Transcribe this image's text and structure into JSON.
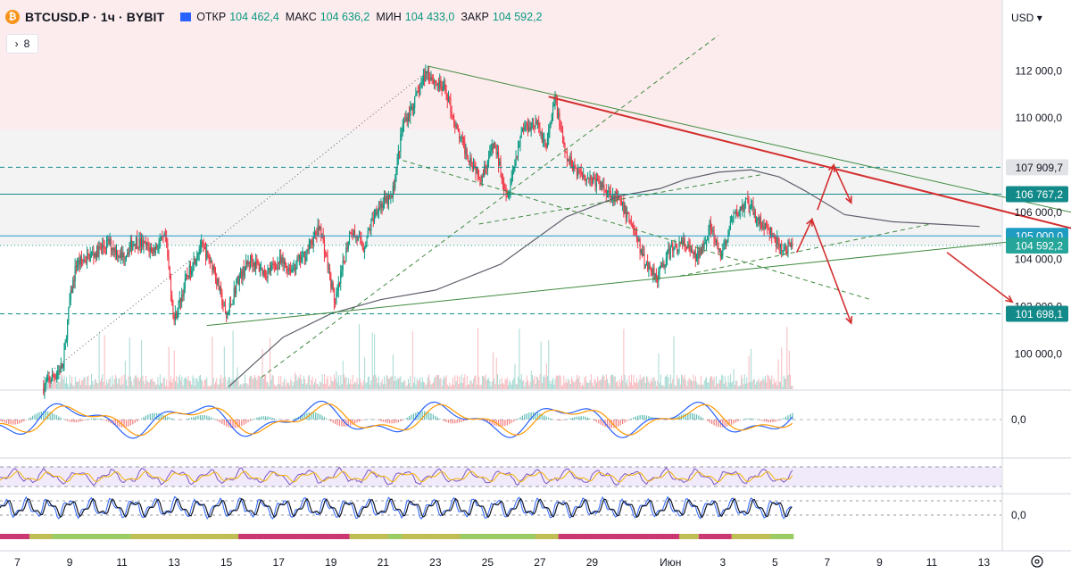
{
  "header": {
    "coin_glyph": "₿",
    "symbol": "BTCUSD.P · 1ч · BYBIT",
    "ohlc": [
      {
        "label": "ОТКР",
        "value": "104 462,4"
      },
      {
        "label": "МАКС",
        "value": "104 636,2"
      },
      {
        "label": "МИН",
        "value": "104 433,0"
      },
      {
        "label": "ЗАКР",
        "value": "104 592,2"
      }
    ],
    "indicator_count": "8"
  },
  "price_axis": {
    "currency": "USD",
    "ticks": [
      {
        "label": "112 000,0",
        "value": 112000
      },
      {
        "label": "110 000,0",
        "value": 110000
      },
      {
        "label": "106 000,0",
        "value": 106000
      },
      {
        "label": "104 000,0",
        "value": 104000
      },
      {
        "label": "102 000,0",
        "value": 102000
      },
      {
        "label": "100 000,0",
        "value": 100000
      }
    ],
    "badges": [
      {
        "label": "107 909,7",
        "value": 107909.7,
        "color": "#e1e3e6",
        "text": "#131722"
      },
      {
        "label": "106 767,2",
        "value": 106767.2,
        "color": "#138a8a",
        "text": "#ffffff"
      },
      {
        "label": "105 000,0",
        "value": 105000.0,
        "color": "#1e9cc1",
        "text": "#ffffff"
      },
      {
        "label": "104 592,2",
        "value": 104592.2,
        "color": "#26a69a",
        "text": "#ffffff"
      },
      {
        "label": "101 698,1",
        "value": 101698.1,
        "color": "#138a8a",
        "text": "#ffffff"
      }
    ],
    "macd_zero": "0,0",
    "stoch_zero": "0,0"
  },
  "time_axis": {
    "labels": [
      {
        "label": "7",
        "bar": -24
      },
      {
        "label": "9",
        "bar": 24
      },
      {
        "label": "11",
        "bar": 72
      },
      {
        "label": "13",
        "bar": 120
      },
      {
        "label": "15",
        "bar": 168
      },
      {
        "label": "17",
        "bar": 216
      },
      {
        "label": "19",
        "bar": 264
      },
      {
        "label": "21",
        "bar": 312
      },
      {
        "label": "23",
        "bar": 360
      },
      {
        "label": "25",
        "bar": 408
      },
      {
        "label": "27",
        "bar": 456
      },
      {
        "label": "29",
        "bar": 504
      },
      {
        "label": "Июн",
        "bar": 576
      },
      {
        "label": "3",
        "bar": 624
      },
      {
        "label": "5",
        "bar": 672
      },
      {
        "label": "7",
        "bar": 720
      },
      {
        "label": "9",
        "bar": 768
      },
      {
        "label": "11",
        "bar": 816
      },
      {
        "label": "13",
        "bar": 864
      }
    ]
  },
  "chart_data": {
    "type": "candlestick",
    "symbol": "BTCUSD.P",
    "interval": "1h",
    "exchange": "BYBIT",
    "currency": "USD",
    "ylim": [
      98500,
      115000
    ],
    "xlim_bars": [
      -40,
      880
    ],
    "last_close": 104592.2,
    "close_path": [
      {
        "bar": 0,
        "price": 98600
      },
      {
        "bar": 18,
        "price": 99500
      },
      {
        "bar": 24,
        "price": 102200
      },
      {
        "bar": 30,
        "price": 103800
      },
      {
        "bar": 48,
        "price": 104300
      },
      {
        "bar": 60,
        "price": 104700
      },
      {
        "bar": 72,
        "price": 104100
      },
      {
        "bar": 84,
        "price": 104800
      },
      {
        "bar": 100,
        "price": 104400
      },
      {
        "bar": 112,
        "price": 104900
      },
      {
        "bar": 120,
        "price": 101400
      },
      {
        "bar": 132,
        "price": 103300
      },
      {
        "bar": 144,
        "price": 104600
      },
      {
        "bar": 156,
        "price": 103700
      },
      {
        "bar": 168,
        "price": 101500
      },
      {
        "bar": 178,
        "price": 103100
      },
      {
        "bar": 190,
        "price": 104000
      },
      {
        "bar": 204,
        "price": 103400
      },
      {
        "bar": 216,
        "price": 103900
      },
      {
        "bar": 228,
        "price": 103600
      },
      {
        "bar": 240,
        "price": 104200
      },
      {
        "bar": 254,
        "price": 105400
      },
      {
        "bar": 268,
        "price": 102100
      },
      {
        "bar": 282,
        "price": 105300
      },
      {
        "bar": 294,
        "price": 104500
      },
      {
        "bar": 306,
        "price": 106200
      },
      {
        "bar": 320,
        "price": 106600
      },
      {
        "bar": 330,
        "price": 109700
      },
      {
        "bar": 342,
        "price": 110800
      },
      {
        "bar": 352,
        "price": 112000
      },
      {
        "bar": 360,
        "price": 111500
      },
      {
        "bar": 370,
        "price": 111100
      },
      {
        "bar": 380,
        "price": 109400
      },
      {
        "bar": 390,
        "price": 108400
      },
      {
        "bar": 402,
        "price": 107500
      },
      {
        "bar": 414,
        "price": 108900
      },
      {
        "bar": 426,
        "price": 106700
      },
      {
        "bar": 440,
        "price": 109600
      },
      {
        "bar": 452,
        "price": 109800
      },
      {
        "bar": 462,
        "price": 108800
      },
      {
        "bar": 470,
        "price": 110800
      },
      {
        "bar": 480,
        "price": 108300
      },
      {
        "bar": 492,
        "price": 107700
      },
      {
        "bar": 504,
        "price": 107400
      },
      {
        "bar": 516,
        "price": 107000
      },
      {
        "bar": 528,
        "price": 106500
      },
      {
        "bar": 540,
        "price": 105600
      },
      {
        "bar": 552,
        "price": 103900
      },
      {
        "bar": 564,
        "price": 103300
      },
      {
        "bar": 576,
        "price": 104400
      },
      {
        "bar": 588,
        "price": 104700
      },
      {
        "bar": 600,
        "price": 104000
      },
      {
        "bar": 612,
        "price": 105400
      },
      {
        "bar": 622,
        "price": 104100
      },
      {
        "bar": 634,
        "price": 105800
      },
      {
        "bar": 646,
        "price": 106400
      },
      {
        "bar": 658,
        "price": 105600
      },
      {
        "bar": 668,
        "price": 105100
      },
      {
        "bar": 678,
        "price": 104400
      },
      {
        "bar": 688,
        "price": 104600
      }
    ],
    "moving_average_color": "#5d606b",
    "ma_path": [
      {
        "bar": 170,
        "price": 98600
      },
      {
        "bar": 220,
        "price": 100700
      },
      {
        "bar": 264,
        "price": 101700
      },
      {
        "bar": 310,
        "price": 102300
      },
      {
        "bar": 360,
        "price": 102700
      },
      {
        "bar": 420,
        "price": 103800
      },
      {
        "bar": 480,
        "price": 105800
      },
      {
        "bar": 530,
        "price": 106700
      },
      {
        "bar": 566,
        "price": 107000
      },
      {
        "bar": 590,
        "price": 107400
      },
      {
        "bar": 620,
        "price": 107700
      },
      {
        "bar": 650,
        "price": 107800
      },
      {
        "bar": 676,
        "price": 107500
      },
      {
        "bar": 700,
        "price": 106900
      },
      {
        "bar": 736,
        "price": 105900
      },
      {
        "bar": 780,
        "price": 105600
      },
      {
        "bar": 820,
        "price": 105500
      },
      {
        "bar": 860,
        "price": 105400
      }
    ],
    "horizontal_levels": [
      {
        "price": 107909.7,
        "style": "dashed",
        "color": "#138a8a"
      },
      {
        "price": 106767.2,
        "style": "solid",
        "color": "#138a8a"
      },
      {
        "price": 105000.0,
        "style": "solid",
        "color": "#1e9cc1"
      },
      {
        "price": 104592.2,
        "style": "dotted",
        "color": "#26a69a"
      },
      {
        "price": 101698.1,
        "style": "dashed",
        "color": "#138a8a"
      }
    ],
    "zones": [
      {
        "from": 109500,
        "to": 115000,
        "color": "#fdeced"
      },
      {
        "from": 104592.2,
        "to": 109500,
        "color": "#f3f3f4"
      }
    ],
    "trend_lines": [
      {
        "from": [
          353,
          112200
        ],
        "to": [
          944,
          106000
        ],
        "color": "#3f8a3f",
        "style": "solid"
      },
      {
        "from": [
          150,
          101200
        ],
        "to": [
          940,
          105000
        ],
        "color": "#3f8a3f",
        "style": "solid"
      },
      {
        "from": [
          464,
          110900
        ],
        "to": [
          972,
          105000
        ],
        "color": "#d32f2f",
        "style": "solid",
        "width": 2
      },
      {
        "from": [
          0,
          99000
        ],
        "to": [
          353,
          112000
        ],
        "color": "#5d606b",
        "style": "dotted"
      },
      {
        "from": [
          330,
          108200
        ],
        "to": [
          760,
          102300
        ],
        "color": "#3f8a3f",
        "style": "dashed"
      },
      {
        "from": [
          200,
          99000
        ],
        "to": [
          620,
          113500
        ],
        "color": "#3f8a3f",
        "style": "dashed"
      },
      {
        "from": [
          400,
          105500
        ],
        "to": [
          660,
          107600
        ],
        "color": "#3f8a3f",
        "style": "dashed"
      },
      {
        "from": [
          585,
          103300
        ],
        "to": [
          815,
          105500
        ],
        "color": "#3f8a3f",
        "style": "dashed"
      }
    ],
    "projection_arrows": [
      {
        "points": [
          [
            692,
            104300
          ],
          [
            706,
            105700
          ],
          [
            742,
            101300
          ]
        ],
        "color": "#d32f2f"
      },
      {
        "points": [
          [
            711,
            106100
          ],
          [
            726,
            108000
          ],
          [
            742,
            106400
          ]
        ],
        "color": "#d32f2f"
      },
      {
        "points": [
          [
            830,
            104300
          ],
          [
            890,
            102200
          ]
        ],
        "color": "#d32f2f"
      }
    ],
    "indicators": {
      "macd": {
        "zero_label": "0,0"
      },
      "rsi": {
        "band_upper": 70,
        "band_lower": 30
      },
      "stochastic": {
        "zero_label": "0,0"
      }
    }
  }
}
